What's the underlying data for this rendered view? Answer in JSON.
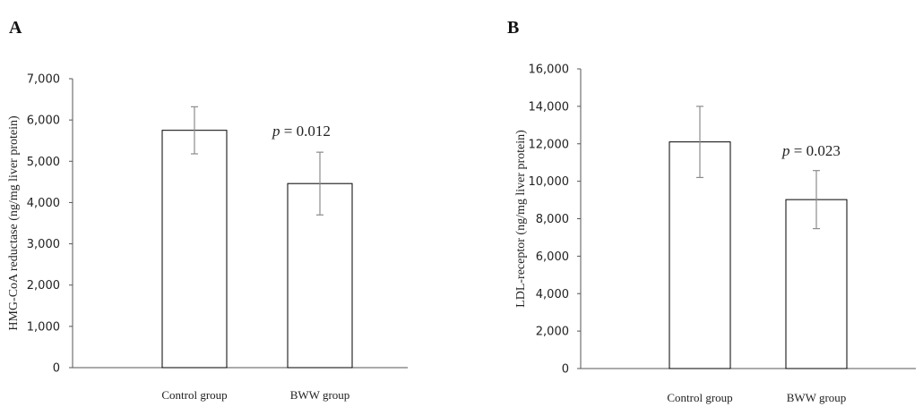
{
  "chart_data": [
    {
      "type": "bar",
      "panel_label": "A",
      "categories": [
        "Control group",
        "BWW group"
      ],
      "values": [
        5750,
        4460
      ],
      "error": [
        570,
        760
      ],
      "ylabel": "HMG-CoA reductase (ng/mg liver protein)",
      "ylim": [
        0,
        7000
      ],
      "yticks": [
        0,
        1000,
        2000,
        3000,
        4000,
        5000,
        6000,
        7000
      ],
      "ytick_labels": [
        "0",
        "1,000",
        "2,000",
        "3,000",
        "4,000",
        "5,000",
        "6,000",
        "7,000"
      ],
      "annotation": {
        "prefix": "p",
        "text": " = 0.012"
      },
      "grid": false,
      "bar_color": "#ffffff",
      "edge_color": "#000000",
      "error_color": "#8c8c8c"
    },
    {
      "type": "bar",
      "panel_label": "B",
      "categories": [
        "Control group",
        "BWW group"
      ],
      "values": [
        12100,
        9020
      ],
      "error": [
        1900,
        1550
      ],
      "ylabel": "LDL-receptor  (ng/mg liver protein)",
      "ylim": [
        0,
        16000
      ],
      "yticks": [
        0,
        2000,
        4000,
        6000,
        8000,
        10000,
        12000,
        14000,
        16000
      ],
      "ytick_labels": [
        "0",
        "2,000",
        "4,000",
        "6,000",
        "8,000",
        "10,000",
        "12,000",
        "14,000",
        "16,000"
      ],
      "annotation": {
        "prefix": "p",
        "text": " = 0.023"
      },
      "grid": false,
      "bar_color": "#ffffff",
      "edge_color": "#000000",
      "error_color": "#8c8c8c"
    }
  ]
}
